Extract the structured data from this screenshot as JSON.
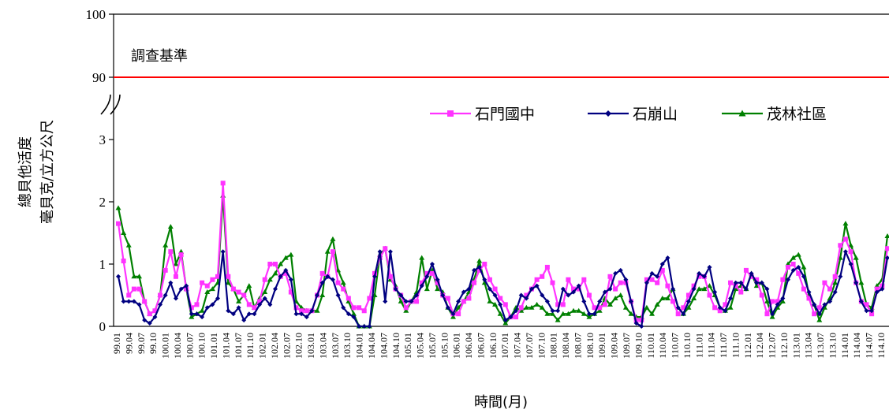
{
  "chart_data": {
    "type": "line",
    "ylabel_line1": "總貝他活度",
    "ylabel_line2": "毫貝克/立方公尺",
    "xlabel": "時間(月)",
    "y_ticks": [
      "0",
      "1",
      "2",
      "3",
      "90",
      "100"
    ],
    "y_axis_break": "between 3 and 90",
    "reference_line": {
      "label": "調查基準",
      "value": 90,
      "color": "#ff0000"
    },
    "legend_position": "top-right",
    "tick_labels": [
      "99.01",
      "99.04",
      "99.07",
      "99.10",
      "100.01",
      "100.04",
      "100.07",
      "100.10",
      "101.01",
      "101.04",
      "101.07",
      "101.10",
      "102.01",
      "102.04",
      "102.07",
      "102.10",
      "103.01",
      "103.04",
      "103.07",
      "103.10",
      "104.01",
      "104.04",
      "104.07",
      "104.10",
      "105.01",
      "105.04",
      "105.07",
      "105.10",
      "106.01",
      "106.04",
      "106.07",
      "106.10",
      "107.01",
      "107.04",
      "107.07",
      "107.10",
      "108.01",
      "108.04",
      "108.07",
      "108.10",
      "109.01",
      "109.04",
      "109.07",
      "109.10",
      "110.01",
      "110.04",
      "110.07",
      "110.10",
      "111.01",
      "111.04",
      "111.07",
      "111.10",
      "112.01",
      "112.04",
      "112.07",
      "112.10",
      "113.01",
      "113.04",
      "113.07",
      "113.10",
      "114.01",
      "114.04",
      "114.07",
      "114.10"
    ],
    "series": [
      {
        "name": "石門國中",
        "color": "#ff33ff",
        "marker": "square",
        "values": [
          1.65,
          1.05,
          0.5,
          0.6,
          0.6,
          0.4,
          0.2,
          0.25,
          0.5,
          0.9,
          1.2,
          0.8,
          1.15,
          0.6,
          0.3,
          0.35,
          0.7,
          0.65,
          0.75,
          0.8,
          2.3,
          0.8,
          0.6,
          0.55,
          0.5,
          0.35,
          0.3,
          0.4,
          0.75,
          1.0,
          1.0,
          0.8,
          0.85,
          0.55,
          0.3,
          0.25,
          0.25,
          0.25,
          0.5,
          0.85,
          0.8,
          1.2,
          0.7,
          0.6,
          0.45,
          0.3,
          0.3,
          0.25,
          0.45,
          0.85,
          1.1,
          1.25,
          0.8,
          0.6,
          0.5,
          0.3,
          0.4,
          0.4,
          0.7,
          0.85,
          0.85,
          0.7,
          0.5,
          0.45,
          0.2,
          0.2,
          0.4,
          0.45,
          0.7,
          0.9,
          1.0,
          0.75,
          0.6,
          0.45,
          0.35,
          0.15,
          0.15,
          0.3,
          0.5,
          0.6,
          0.75,
          0.8,
          0.95,
          0.7,
          0.35,
          0.35,
          0.75,
          0.6,
          0.6,
          0.75,
          0.5,
          0.3,
          0.3,
          0.35,
          0.8,
          0.6,
          0.7,
          0.7,
          0.4,
          0.1,
          0.1,
          0.75,
          0.75,
          0.7,
          0.9,
          0.65,
          0.4,
          0.2,
          0.3,
          0.5,
          0.65,
          0.8,
          0.8,
          0.5,
          0.3,
          0.25,
          0.35,
          0.7,
          0.65,
          0.55,
          0.9,
          0.8,
          0.75,
          0.5,
          0.2,
          0.4,
          0.4,
          0.75,
          0.95,
          1.0,
          0.85,
          0.6,
          0.45,
          0.2,
          0.3,
          0.7,
          0.6,
          0.8,
          1.3,
          1.4,
          1.2,
          0.7,
          0.4,
          0.35,
          0.2,
          0.6,
          0.65,
          1.25
        ]
      },
      {
        "name": "石崩山",
        "color": "#000080",
        "marker": "diamond",
        "values": [
          0.8,
          0.4,
          0.4,
          0.4,
          0.35,
          0.1,
          0.05,
          0.15,
          0.35,
          0.5,
          0.7,
          0.45,
          0.6,
          0.65,
          0.2,
          0.2,
          0.15,
          0.3,
          0.35,
          0.45,
          1.2,
          0.25,
          0.2,
          0.3,
          0.1,
          0.2,
          0.2,
          0.35,
          0.45,
          0.35,
          0.6,
          0.8,
          0.9,
          0.75,
          0.2,
          0.2,
          0.15,
          0.25,
          0.5,
          0.7,
          0.8,
          0.75,
          0.5,
          0.3,
          0.2,
          0.15,
          0.0,
          0.0,
          0.0,
          0.8,
          1.2,
          0.4,
          1.2,
          0.6,
          0.5,
          0.4,
          0.4,
          0.5,
          0.65,
          0.8,
          1.0,
          0.75,
          0.5,
          0.3,
          0.2,
          0.4,
          0.55,
          0.6,
          0.9,
          0.95,
          0.75,
          0.6,
          0.5,
          0.35,
          0.1,
          0.15,
          0.25,
          0.5,
          0.45,
          0.6,
          0.65,
          0.5,
          0.4,
          0.25,
          0.25,
          0.6,
          0.5,
          0.55,
          0.65,
          0.4,
          0.2,
          0.2,
          0.4,
          0.55,
          0.6,
          0.85,
          0.9,
          0.75,
          0.4,
          0.05,
          0.0,
          0.7,
          0.85,
          0.8,
          1.0,
          1.1,
          0.6,
          0.3,
          0.2,
          0.4,
          0.6,
          0.85,
          0.8,
          0.95,
          0.55,
          0.3,
          0.25,
          0.45,
          0.7,
          0.7,
          0.6,
          0.85,
          0.7,
          0.7,
          0.6,
          0.2,
          0.35,
          0.45,
          0.75,
          0.9,
          0.95,
          0.8,
          0.55,
          0.35,
          0.2,
          0.35,
          0.4,
          0.55,
          0.8,
          1.2,
          1.0,
          0.7,
          0.4,
          0.25,
          0.25,
          0.55,
          0.6,
          1.1
        ]
      },
      {
        "name": "茂林社區",
        "color": "#008000",
        "marker": "triangle",
        "values": [
          1.9,
          1.5,
          1.3,
          0.8,
          0.8,
          0.4,
          0.2,
          0.25,
          0.5,
          1.3,
          1.6,
          1.0,
          1.2,
          0.6,
          0.15,
          0.2,
          0.25,
          0.55,
          0.6,
          0.7,
          2.1,
          0.7,
          0.6,
          0.4,
          0.5,
          0.65,
          0.3,
          0.45,
          0.55,
          0.75,
          0.85,
          1.0,
          1.1,
          1.15,
          0.4,
          0.3,
          0.25,
          0.25,
          0.25,
          0.5,
          1.2,
          1.4,
          0.9,
          0.7,
          0.4,
          0.2,
          0.0,
          0.0,
          0.0,
          0.5,
          1.15,
          1.25,
          0.75,
          0.65,
          0.4,
          0.25,
          0.4,
          0.55,
          1.1,
          0.6,
          0.9,
          0.6,
          0.55,
          0.3,
          0.15,
          0.3,
          0.4,
          0.55,
          0.75,
          1.05,
          0.7,
          0.4,
          0.35,
          0.2,
          0.05,
          0.15,
          0.3,
          0.25,
          0.3,
          0.3,
          0.35,
          0.3,
          0.2,
          0.2,
          0.1,
          0.2,
          0.2,
          0.25,
          0.25,
          0.2,
          0.15,
          0.2,
          0.25,
          0.45,
          0.35,
          0.45,
          0.5,
          0.3,
          0.2,
          0.15,
          0.15,
          0.3,
          0.2,
          0.35,
          0.45,
          0.45,
          0.6,
          0.3,
          0.2,
          0.3,
          0.45,
          0.6,
          0.6,
          0.65,
          0.5,
          0.3,
          0.25,
          0.3,
          0.6,
          0.65,
          0.6,
          0.85,
          0.65,
          0.7,
          0.4,
          0.15,
          0.3,
          0.4,
          1.0,
          1.1,
          1.15,
          0.95,
          0.5,
          0.35,
          0.1,
          0.3,
          0.45,
          0.7,
          1.1,
          1.65,
          1.3,
          1.1,
          0.7,
          0.35,
          0.3,
          0.65,
          0.75,
          1.45
        ]
      }
    ]
  }
}
